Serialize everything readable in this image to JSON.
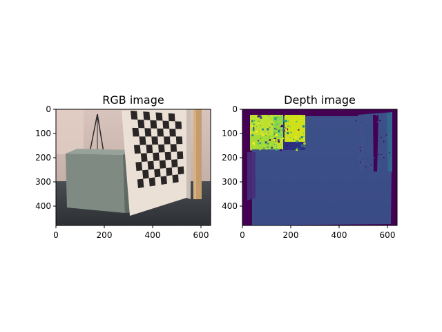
{
  "chart_data": [
    {
      "type": "image",
      "title": "RGB image",
      "content": "photograph",
      "xlim": [
        0,
        640
      ],
      "ylim": [
        480,
        0
      ],
      "xticks": [
        0,
        200,
        400,
        600
      ],
      "yticks": [
        0,
        100,
        200,
        300,
        400
      ],
      "xtick_labels": [
        "0",
        "200",
        "400",
        "600"
      ],
      "ytick_labels": [
        "0",
        "100",
        "200",
        "300",
        "400"
      ]
    },
    {
      "type": "heatmap",
      "title": "Depth image",
      "colormap": "viridis",
      "xlim": [
        0,
        640
      ],
      "ylim": [
        480,
        0
      ],
      "xticks": [
        0,
        200,
        400,
        600
      ],
      "yticks": [
        0,
        100,
        200,
        300,
        400
      ],
      "xtick_labels": [
        "0",
        "200",
        "400",
        "600"
      ],
      "ytick_labels": [
        "0",
        "100",
        "200",
        "300",
        "400"
      ]
    }
  ],
  "colors": {
    "rgb_background_wall": "#c8b2a8",
    "rgb_floor": "#3c3f44",
    "rgb_cabinet": "#7e8a82",
    "rgb_board": "#e8dcd2",
    "rgb_pole": "#c7a070",
    "depth_low": "#440154",
    "depth_mid": "#3b528b",
    "depth_high": "#c7e020"
  }
}
